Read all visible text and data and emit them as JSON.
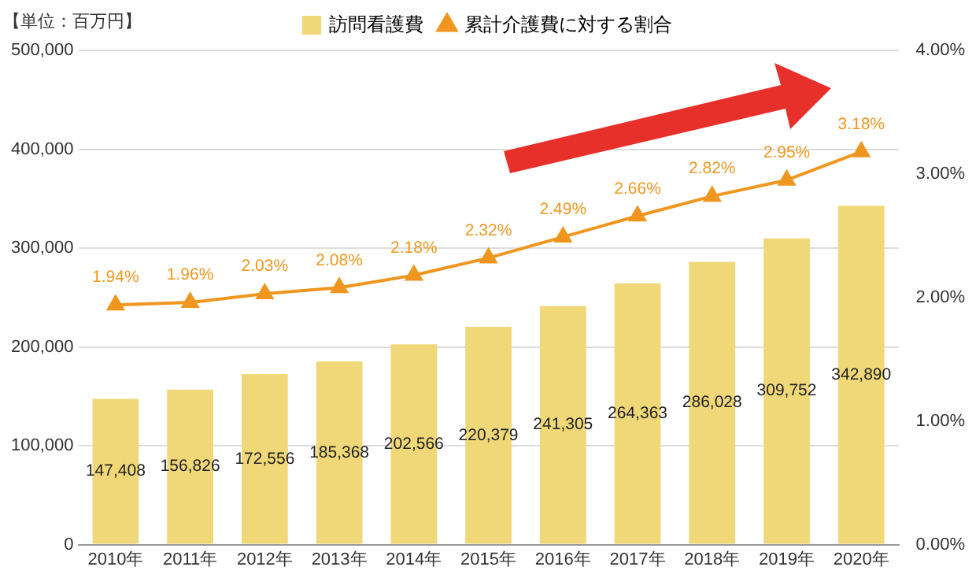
{
  "chart_data": {
    "type": "bar",
    "categories": [
      "2010年",
      "2011年",
      "2012年",
      "2013年",
      "2014年",
      "2015年",
      "2016年",
      "2017年",
      "2018年",
      "2019年",
      "2020年"
    ],
    "series": [
      {
        "name": "訪問看護費",
        "color": "#f0d878",
        "values": [
          147408,
          156826,
          172556,
          185368,
          202566,
          220379,
          241305,
          264363,
          286028,
          309752,
          342890
        ],
        "value_labels": [
          "147,408",
          "156,826",
          "172,556",
          "185,368",
          "202,566",
          "220,379",
          "241,305",
          "264,363",
          "286,028",
          "309,752",
          "342,890"
        ]
      },
      {
        "name": "累計介護費に対する割合",
        "type": "line",
        "axis": "y2",
        "color": "#f0961e",
        "marker": "triangle",
        "line_style": "solid",
        "values": [
          1.94,
          1.96,
          2.03,
          2.08,
          2.18,
          2.32,
          2.49,
          2.66,
          2.82,
          2.95,
          3.18
        ],
        "value_labels": [
          "1.94%",
          "1.96%",
          "2.03%",
          "2.08%",
          "2.18%",
          "2.32%",
          "2.49%",
          "2.66%",
          "2.82%",
          "2.95%",
          "3.18%"
        ]
      }
    ],
    "ylim": [
      0,
      500000
    ],
    "yticks": [
      {
        "value": 0,
        "label": "0"
      },
      {
        "value": 100000,
        "label": "100,000"
      },
      {
        "value": 200000,
        "label": "200,000"
      },
      {
        "value": 300000,
        "label": "300,000"
      },
      {
        "value": 400000,
        "label": "400,000"
      },
      {
        "value": 500000,
        "label": "500,000"
      }
    ],
    "y2lim": [
      0,
      4
    ],
    "y2ticks": [
      {
        "value": 0,
        "label": "0.00%"
      },
      {
        "value": 1,
        "label": "1.00%"
      },
      {
        "value": 2,
        "label": "2.00%"
      },
      {
        "value": 3,
        "label": "3.00%"
      },
      {
        "value": 4,
        "label": "4.00%"
      }
    ],
    "grid": "y",
    "legend": "top",
    "annotations": [
      "【単位：百万円】"
    ]
  }
}
